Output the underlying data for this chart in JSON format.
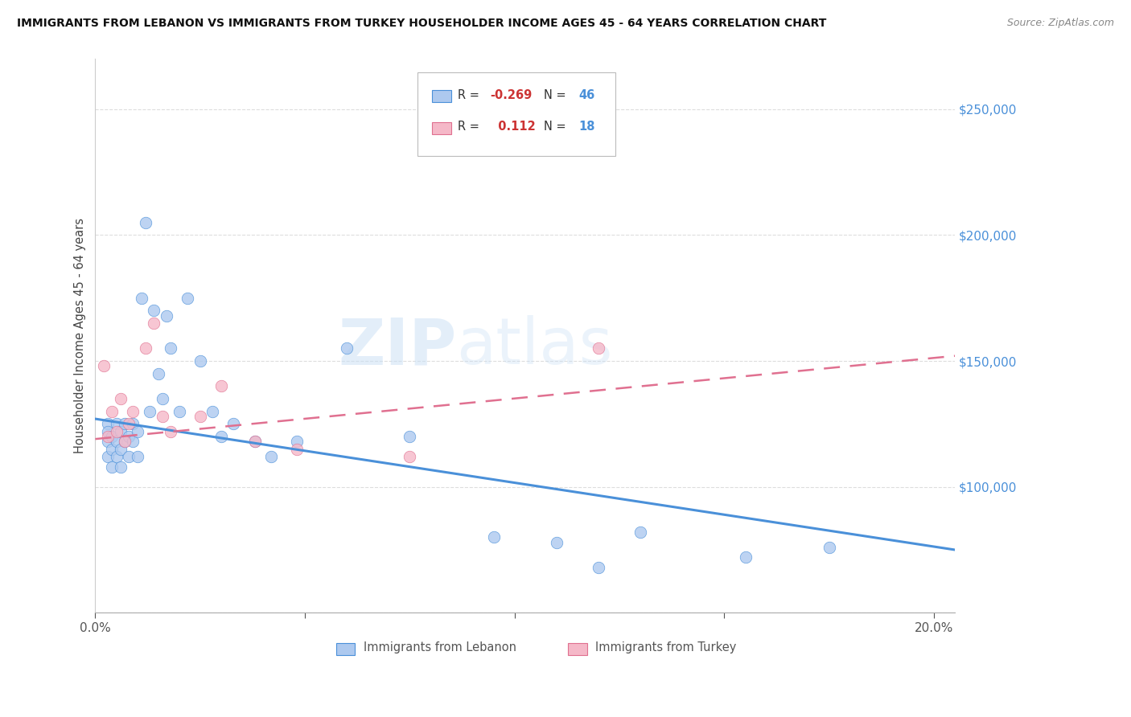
{
  "title": "IMMIGRANTS FROM LEBANON VS IMMIGRANTS FROM TURKEY HOUSEHOLDER INCOME AGES 45 - 64 YEARS CORRELATION CHART",
  "source": "Source: ZipAtlas.com",
  "ylabel": "Householder Income Ages 45 - 64 years",
  "xlim": [
    0.0,
    0.205
  ],
  "ylim": [
    50000,
    270000
  ],
  "background_color": "#ffffff",
  "watermark_zip": "ZIP",
  "watermark_atlas": "atlas",
  "legend_R_lebanon": "-0.269",
  "legend_N_lebanon": "46",
  "legend_R_turkey": "0.112",
  "legend_N_turkey": "18",
  "lebanon_color": "#adc9ef",
  "turkey_color": "#f5b8c8",
  "lebanon_line_color": "#4a90d9",
  "turkey_line_color": "#e07090",
  "lebanon_x": [
    0.003,
    0.003,
    0.003,
    0.003,
    0.004,
    0.004,
    0.004,
    0.005,
    0.005,
    0.005,
    0.006,
    0.006,
    0.006,
    0.007,
    0.007,
    0.008,
    0.008,
    0.009,
    0.009,
    0.01,
    0.01,
    0.011,
    0.012,
    0.013,
    0.014,
    0.015,
    0.016,
    0.017,
    0.018,
    0.02,
    0.022,
    0.025,
    0.028,
    0.03,
    0.033,
    0.038,
    0.042,
    0.048,
    0.06,
    0.075,
    0.095,
    0.11,
    0.12,
    0.13,
    0.155,
    0.175
  ],
  "lebanon_y": [
    125000,
    122000,
    118000,
    112000,
    120000,
    115000,
    108000,
    125000,
    118000,
    112000,
    122000,
    115000,
    108000,
    125000,
    118000,
    120000,
    112000,
    125000,
    118000,
    122000,
    112000,
    175000,
    205000,
    130000,
    170000,
    145000,
    135000,
    168000,
    155000,
    130000,
    175000,
    150000,
    130000,
    120000,
    125000,
    118000,
    112000,
    118000,
    155000,
    120000,
    80000,
    78000,
    68000,
    82000,
    72000,
    76000
  ],
  "turkey_x": [
    0.002,
    0.003,
    0.004,
    0.005,
    0.006,
    0.007,
    0.008,
    0.009,
    0.012,
    0.014,
    0.016,
    0.018,
    0.025,
    0.03,
    0.038,
    0.048,
    0.075,
    0.12
  ],
  "turkey_y": [
    148000,
    120000,
    130000,
    122000,
    135000,
    118000,
    125000,
    130000,
    155000,
    165000,
    128000,
    122000,
    128000,
    140000,
    118000,
    115000,
    112000,
    155000
  ],
  "marker_size": 110
}
